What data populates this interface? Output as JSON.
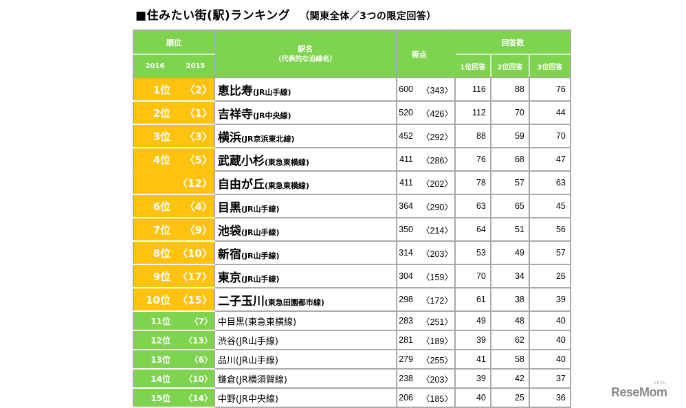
{
  "title": {
    "main": "■住みたい街(駅)ランキング",
    "sub": "（関東全体／3つの限定回答）"
  },
  "header": {
    "rank": "順位",
    "year_2016": "2016",
    "year_2015": "2015",
    "station": "駅名",
    "station_sub": "（代表的な沿線名）",
    "score": "得点",
    "answers": "回答数",
    "first": "1位回答",
    "second": "2位回答",
    "third": "3位回答"
  },
  "colors": {
    "header_green": "#7fd44f",
    "top10_yellow": "#fec20f",
    "border_gray": "#a9a9a9"
  },
  "rows": [
    {
      "rank2016": "1位",
      "rank2015": "〈2〉",
      "station": "恵比寿",
      "line": "(JR山手線)",
      "score": "600",
      "prev": "〈343〉",
      "a1": "116",
      "a2": "88",
      "a3": "76"
    },
    {
      "rank2016": "2位",
      "rank2015": "〈1〉",
      "station": "吉祥寺",
      "line": "(JR中央線)",
      "score": "520",
      "prev": "〈426〉",
      "a1": "112",
      "a2": "70",
      "a3": "44"
    },
    {
      "rank2016": "3位",
      "rank2015": "〈3〉",
      "station": "横浜",
      "line": "(JR京浜東北線)",
      "score": "452",
      "prev": "〈292〉",
      "a1": "88",
      "a2": "59",
      "a3": "70"
    },
    {
      "rank2016": "4位",
      "rank2015": "〈5〉",
      "station": "武蔵小杉",
      "line": "(東急東横線)",
      "score": "411",
      "prev": "〈286〉",
      "a1": "76",
      "a2": "68",
      "a3": "47"
    },
    {
      "rank2016": "",
      "rank2015": "〈12〉",
      "station": "自由が丘",
      "line": "(東急東横線)",
      "score": "411",
      "prev": "〈202〉",
      "a1": "78",
      "a2": "57",
      "a3": "63"
    },
    {
      "rank2016": "6位",
      "rank2015": "〈4〉",
      "station": "目黒",
      "line": "(JR山手線)",
      "score": "364",
      "prev": "〈290〉",
      "a1": "63",
      "a2": "65",
      "a3": "45"
    },
    {
      "rank2016": "7位",
      "rank2015": "〈9〉",
      "station": "池袋",
      "line": "(JR山手線)",
      "score": "350",
      "prev": "〈214〉",
      "a1": "64",
      "a2": "51",
      "a3": "56"
    },
    {
      "rank2016": "8位",
      "rank2015": "〈10〉",
      "station": "新宿",
      "line": "(JR山手線)",
      "score": "314",
      "prev": "〈203〉",
      "a1": "53",
      "a2": "49",
      "a3": "57"
    },
    {
      "rank2016": "9位",
      "rank2015": "〈17〉",
      "station": "東京",
      "line": "(JR山手線)",
      "score": "304",
      "prev": "〈159〉",
      "a1": "70",
      "a2": "34",
      "a3": "26"
    },
    {
      "rank2016": "10位",
      "rank2015": "〈15〉",
      "station": "二子玉川",
      "line": "(東急田園都市線)",
      "score": "298",
      "prev": "〈172〉",
      "a1": "61",
      "a2": "38",
      "a3": "39"
    },
    {
      "rank2016": "11位",
      "rank2015": "〈7〉",
      "station": "中目黒",
      "line": "(東急東横線)",
      "score": "283",
      "prev": "〈251〉",
      "a1": "49",
      "a2": "48",
      "a3": "40"
    },
    {
      "rank2016": "12位",
      "rank2015": "〈13〉",
      "station": "渋谷",
      "line": "(JR山手線)",
      "score": "281",
      "prev": "〈189〉",
      "a1": "39",
      "a2": "62",
      "a3": "40"
    },
    {
      "rank2016": "13位",
      "rank2015": "〈6〉",
      "station": "品川",
      "line": "(JR山手線)",
      "score": "279",
      "prev": "〈255〉",
      "a1": "41",
      "a2": "58",
      "a3": "40"
    },
    {
      "rank2016": "14位",
      "rank2015": "〈10〉",
      "station": "鎌倉",
      "line": "(JR横須賀線)",
      "score": "238",
      "prev": "〈203〉",
      "a1": "39",
      "a2": "42",
      "a3": "37"
    },
    {
      "rank2016": "15位",
      "rank2015": "〈14〉",
      "station": "中野",
      "line": "(JR中央線)",
      "score": "206",
      "prev": "〈185〉",
      "a1": "40",
      "a2": "25",
      "a3": "36"
    }
  ],
  "logo": {
    "text": "ReseMom",
    "kana": "リセマム"
  }
}
